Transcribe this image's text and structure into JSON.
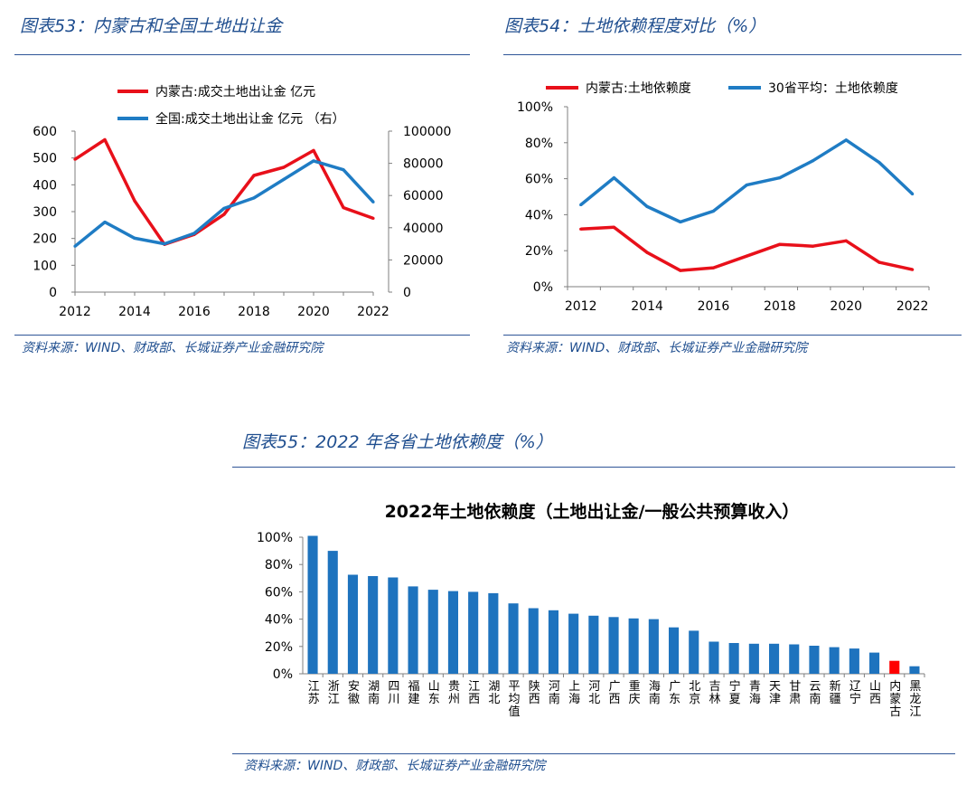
{
  "colors": {
    "red": "#e8101a",
    "blue": "#1f7cc4",
    "bar_blue": "#1e73be",
    "title_blue": "#1f4e8f"
  },
  "figures": {
    "fig53": {
      "caption": "图表53：内蒙古和全国土地出让金",
      "source": "资料来源：WIND、财政部、长城证券产业金融研究院"
    },
    "fig54": {
      "caption": "图表54：土地依赖程度对比（%）",
      "source": "资料来源：WIND、财政部、长城证券产业金融研究院"
    },
    "fig55": {
      "caption": "图表55：2022 年各省土地依赖度（%）",
      "source": "资料来源：WIND、财政部、长城证券产业金融研究院"
    }
  },
  "chart_data": [
    {
      "id": "fig53",
      "type": "line",
      "title": "",
      "x": [
        2012,
        2013,
        2014,
        2015,
        2016,
        2017,
        2018,
        2019,
        2020,
        2021,
        2022
      ],
      "xticks": [
        "2012",
        "2014",
        "2016",
        "2018",
        "2020",
        "2022"
      ],
      "xticks_values": [
        2012,
        2014,
        2016,
        2018,
        2020,
        2022
      ],
      "xlim": [
        2012,
        2022
      ],
      "ylim_left": [
        0,
        600
      ],
      "yticks_left": [
        "0",
        "100",
        "200",
        "300",
        "400",
        "500",
        "600"
      ],
      "yticks_left_values": [
        0,
        100,
        200,
        300,
        400,
        500,
        600
      ],
      "ylim_right": [
        0,
        100000
      ],
      "yticks_right": [
        "0",
        "20000",
        "40000",
        "60000",
        "80000",
        "100000"
      ],
      "yticks_right_values": [
        0,
        20000,
        40000,
        60000,
        80000,
        100000
      ],
      "legend_position": "top-left",
      "series": [
        {
          "name": "内蒙古:成交土地出让金  亿元",
          "axis": "left",
          "color": "#e8101a",
          "values": [
            495,
            568,
            340,
            178,
            215,
            290,
            435,
            465,
            528,
            315,
            275
          ]
        },
        {
          "name": "全国:成交土地出让金   亿元  （右）",
          "axis": "right",
          "color": "#1f7cc4",
          "values": [
            28500,
            43500,
            33500,
            30000,
            36500,
            52000,
            58500,
            70000,
            81500,
            76000,
            56000
          ]
        }
      ]
    },
    {
      "id": "fig54",
      "type": "line",
      "title": "",
      "x": [
        2012,
        2013,
        2014,
        2015,
        2016,
        2017,
        2018,
        2019,
        2020,
        2021,
        2022
      ],
      "xticks": [
        "2012",
        "2014",
        "2016",
        "2018",
        "2020",
        "2022"
      ],
      "xticks_values": [
        2012,
        2014,
        2016,
        2018,
        2020,
        2022
      ],
      "xlim": [
        2011.6,
        2022.5
      ],
      "ylim": [
        0,
        100
      ],
      "yticks": [
        "0%",
        "20%",
        "40%",
        "60%",
        "80%",
        "100%"
      ],
      "yticks_values": [
        0,
        20,
        40,
        60,
        80,
        100
      ],
      "legend_position": "top",
      "series": [
        {
          "name": "内蒙古:土地依赖度",
          "color": "#e8101a",
          "values": [
            32,
            33,
            19,
            9,
            10.5,
            17,
            23.5,
            22.5,
            25.5,
            13.5,
            9.5
          ]
        },
        {
          "name": "30省平均：土地依赖度",
          "color": "#1f7cc4",
          "values": [
            45.5,
            60.5,
            44.5,
            36,
            42,
            56.5,
            60.5,
            70,
            81.5,
            69,
            51.5
          ]
        }
      ]
    },
    {
      "id": "fig55",
      "type": "bar",
      "title": "2022年土地依赖度（土地出让金/一般公共预算收入）",
      "ylim": [
        0,
        100
      ],
      "yticks": [
        "0%",
        "20%",
        "40%",
        "60%",
        "80%",
        "100%"
      ],
      "yticks_values": [
        0,
        20,
        40,
        60,
        80,
        100
      ],
      "highlight": "内蒙古",
      "highlight_color": "#ff0000",
      "categories": [
        "江苏",
        "浙江",
        "安徽",
        "湖南",
        "四川",
        "福建",
        "山东",
        "贵州",
        "江西",
        "湖北",
        "平均值",
        "陕西",
        "河南",
        "上海",
        "河北",
        "广西",
        "重庆",
        "海南",
        "广东",
        "北京",
        "吉林",
        "宁夏",
        "青海",
        "天津",
        "甘肃",
        "云南",
        "新疆",
        "辽宁",
        "山西",
        "内蒙古",
        "黑龙江"
      ],
      "values": [
        101,
        90,
        72.5,
        71.5,
        70.5,
        64,
        61.5,
        60.5,
        60,
        59,
        51.5,
        48,
        46.5,
        44,
        42.5,
        41.5,
        40.5,
        40,
        34,
        31.5,
        23.5,
        22.5,
        22,
        22,
        21.5,
        20.5,
        19.5,
        18.5,
        15.5,
        9.5,
        5.5
      ]
    }
  ]
}
